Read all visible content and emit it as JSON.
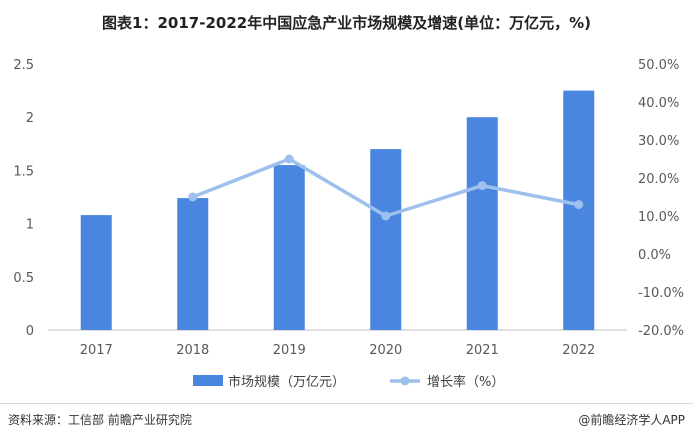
{
  "chart_data": {
    "type": "bar",
    "title": "图表1：2017-2022年中国应急产业市场规模及增速(单位：万亿元，%)",
    "categories": [
      "2017",
      "2018",
      "2019",
      "2020",
      "2021",
      "2022"
    ],
    "series": [
      {
        "name": "市场规模（万亿元）",
        "type": "bar",
        "axis": "left",
        "color": "#4a86e0",
        "values": [
          1.08,
          1.24,
          1.55,
          1.7,
          2.0,
          2.25
        ]
      },
      {
        "name": "增长率（%）",
        "type": "line",
        "axis": "right",
        "color": "#9dc0ec",
        "values": [
          null,
          15.0,
          25.0,
          10.0,
          18.0,
          13.0
        ]
      }
    ],
    "y_left": {
      "ylim": [
        0,
        2.5
      ],
      "ticks": [
        0,
        0.5,
        1,
        1.5,
        2,
        2.5
      ],
      "tick_labels": [
        "0",
        "0.5",
        "1",
        "1.5",
        "2",
        "2.5"
      ]
    },
    "y_right": {
      "ylim": [
        -20,
        50
      ],
      "ticks": [
        -20,
        -10,
        0,
        10,
        20,
        30,
        40,
        50
      ],
      "tick_labels": [
        "-20.0%",
        "-10.0%",
        "0.0%",
        "10.0%",
        "20.0%",
        "30.0%",
        "40.0%",
        "50.0%"
      ]
    },
    "grid": false,
    "legend_position": "bottom"
  },
  "footer": {
    "source": "资料来源：工信部 前瞻产业研究院",
    "brand": "@前瞻经济学人APP"
  }
}
